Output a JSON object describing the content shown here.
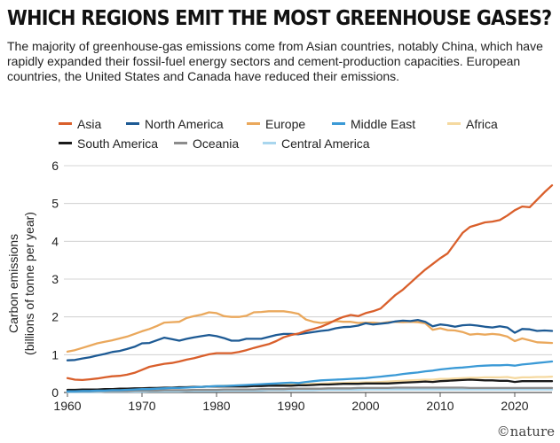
{
  "title": "WHICH REGIONS EMIT THE MOST GREENHOUSE GASES?",
  "subtitle": "The majority of greenhouse-gas emissions come from Asian countries, notably China, which have rapidly expanded their fossil-fuel energy sectors and cement-production capacities. European countries, the United States and Canada have reduced their emissions.",
  "credit": "©nature",
  "chart_data": {
    "type": "line",
    "ylabel_line1": "Carbon emissions",
    "ylabel_line2": "(billions of tonne per year)",
    "xlabel": "",
    "xlim": [
      1960,
      2025
    ],
    "ylim": [
      0,
      6
    ],
    "xticks": [
      1960,
      1970,
      1980,
      1990,
      2000,
      2010,
      2020
    ],
    "yticks": [
      0,
      1,
      2,
      3,
      4,
      5,
      6
    ],
    "grid": "horizontal",
    "legend_position": "top",
    "x": [
      1960,
      1961,
      1962,
      1963,
      1964,
      1965,
      1966,
      1967,
      1968,
      1969,
      1970,
      1971,
      1972,
      1973,
      1974,
      1975,
      1976,
      1977,
      1978,
      1979,
      1980,
      1981,
      1982,
      1983,
      1984,
      1985,
      1986,
      1987,
      1988,
      1989,
      1990,
      1991,
      1992,
      1993,
      1994,
      1995,
      1996,
      1997,
      1998,
      1999,
      2000,
      2001,
      2002,
      2003,
      2004,
      2005,
      2006,
      2007,
      2008,
      2009,
      2010,
      2011,
      2012,
      2013,
      2014,
      2015,
      2016,
      2017,
      2018,
      2019,
      2020,
      2021,
      2022,
      2023,
      2024,
      2025
    ],
    "series": [
      {
        "name": "Asia",
        "color": "#d95f2b",
        "values": [
          0.38,
          0.34,
          0.33,
          0.35,
          0.37,
          0.4,
          0.43,
          0.44,
          0.47,
          0.52,
          0.6,
          0.68,
          0.72,
          0.76,
          0.78,
          0.82,
          0.87,
          0.91,
          0.96,
          1.01,
          1.04,
          1.04,
          1.04,
          1.07,
          1.12,
          1.18,
          1.23,
          1.28,
          1.36,
          1.46,
          1.52,
          1.56,
          1.63,
          1.68,
          1.74,
          1.82,
          1.92,
          2.0,
          2.05,
          2.02,
          2.1,
          2.15,
          2.22,
          2.4,
          2.58,
          2.72,
          2.9,
          3.08,
          3.25,
          3.4,
          3.55,
          3.68,
          3.95,
          4.22,
          4.38,
          4.44,
          4.5,
          4.52,
          4.56,
          4.68,
          4.82,
          4.92,
          4.9,
          5.1,
          5.3,
          5.48
        ]
      },
      {
        "name": "North America",
        "color": "#1d5a94",
        "values": [
          0.85,
          0.86,
          0.9,
          0.93,
          0.98,
          1.02,
          1.07,
          1.1,
          1.15,
          1.21,
          1.3,
          1.31,
          1.38,
          1.45,
          1.41,
          1.37,
          1.42,
          1.46,
          1.49,
          1.52,
          1.49,
          1.44,
          1.37,
          1.37,
          1.42,
          1.42,
          1.42,
          1.47,
          1.52,
          1.55,
          1.55,
          1.54,
          1.57,
          1.6,
          1.63,
          1.65,
          1.7,
          1.73,
          1.74,
          1.77,
          1.83,
          1.8,
          1.82,
          1.84,
          1.88,
          1.9,
          1.89,
          1.92,
          1.87,
          1.75,
          1.8,
          1.78,
          1.74,
          1.78,
          1.79,
          1.77,
          1.74,
          1.72,
          1.75,
          1.72,
          1.58,
          1.68,
          1.67,
          1.63,
          1.64,
          1.63
        ]
      },
      {
        "name": "Europe",
        "color": "#eaa85c",
        "values": [
          1.08,
          1.12,
          1.18,
          1.24,
          1.3,
          1.34,
          1.38,
          1.43,
          1.48,
          1.55,
          1.62,
          1.68,
          1.76,
          1.85,
          1.86,
          1.87,
          1.97,
          2.02,
          2.06,
          2.12,
          2.1,
          2.02,
          2.0,
          2.0,
          2.03,
          2.12,
          2.13,
          2.15,
          2.15,
          2.15,
          2.12,
          2.08,
          1.93,
          1.87,
          1.84,
          1.86,
          1.89,
          1.87,
          1.87,
          1.84,
          1.85,
          1.85,
          1.83,
          1.86,
          1.87,
          1.86,
          1.87,
          1.86,
          1.83,
          1.66,
          1.7,
          1.65,
          1.64,
          1.6,
          1.53,
          1.55,
          1.53,
          1.55,
          1.53,
          1.48,
          1.36,
          1.43,
          1.38,
          1.33,
          1.32,
          1.31
        ]
      },
      {
        "name": "Middle East",
        "color": "#3b9ad6",
        "values": [
          0.03,
          0.03,
          0.04,
          0.04,
          0.05,
          0.05,
          0.06,
          0.06,
          0.07,
          0.08,
          0.09,
          0.09,
          0.1,
          0.11,
          0.12,
          0.12,
          0.13,
          0.14,
          0.15,
          0.16,
          0.17,
          0.17,
          0.18,
          0.19,
          0.2,
          0.21,
          0.22,
          0.23,
          0.24,
          0.25,
          0.26,
          0.25,
          0.28,
          0.3,
          0.32,
          0.33,
          0.34,
          0.35,
          0.36,
          0.37,
          0.38,
          0.4,
          0.42,
          0.44,
          0.46,
          0.49,
          0.51,
          0.53,
          0.56,
          0.58,
          0.61,
          0.63,
          0.65,
          0.66,
          0.68,
          0.7,
          0.71,
          0.72,
          0.72,
          0.73,
          0.71,
          0.74,
          0.76,
          0.78,
          0.8,
          0.82
        ]
      },
      {
        "name": "Africa",
        "color": "#f5d9a0",
        "values": [
          0.07,
          0.07,
          0.07,
          0.08,
          0.08,
          0.08,
          0.09,
          0.09,
          0.1,
          0.1,
          0.11,
          0.11,
          0.12,
          0.12,
          0.13,
          0.13,
          0.14,
          0.15,
          0.15,
          0.16,
          0.17,
          0.18,
          0.18,
          0.19,
          0.19,
          0.2,
          0.2,
          0.21,
          0.21,
          0.22,
          0.22,
          0.22,
          0.22,
          0.23,
          0.23,
          0.24,
          0.25,
          0.25,
          0.26,
          0.26,
          0.27,
          0.27,
          0.28,
          0.29,
          0.3,
          0.31,
          0.32,
          0.33,
          0.34,
          0.34,
          0.36,
          0.36,
          0.37,
          0.38,
          0.39,
          0.39,
          0.4,
          0.4,
          0.4,
          0.41,
          0.38,
          0.4,
          0.4,
          0.41,
          0.41,
          0.42
        ]
      },
      {
        "name": "South America",
        "color": "#1a1a1a",
        "values": [
          0.07,
          0.07,
          0.08,
          0.08,
          0.08,
          0.09,
          0.09,
          0.1,
          0.1,
          0.11,
          0.11,
          0.12,
          0.12,
          0.13,
          0.13,
          0.14,
          0.14,
          0.15,
          0.15,
          0.16,
          0.16,
          0.16,
          0.16,
          0.16,
          0.16,
          0.17,
          0.17,
          0.18,
          0.18,
          0.18,
          0.18,
          0.19,
          0.19,
          0.2,
          0.21,
          0.21,
          0.22,
          0.23,
          0.23,
          0.23,
          0.24,
          0.24,
          0.24,
          0.24,
          0.25,
          0.26,
          0.27,
          0.28,
          0.29,
          0.28,
          0.3,
          0.31,
          0.32,
          0.33,
          0.34,
          0.33,
          0.32,
          0.32,
          0.31,
          0.31,
          0.28,
          0.3,
          0.3,
          0.3,
          0.3,
          0.3
        ]
      },
      {
        "name": "Oceania",
        "color": "#8c8c8c",
        "values": [
          0.03,
          0.03,
          0.03,
          0.03,
          0.04,
          0.04,
          0.04,
          0.04,
          0.04,
          0.05,
          0.05,
          0.05,
          0.05,
          0.06,
          0.06,
          0.06,
          0.06,
          0.07,
          0.07,
          0.07,
          0.07,
          0.08,
          0.08,
          0.08,
          0.08,
          0.08,
          0.09,
          0.09,
          0.09,
          0.09,
          0.1,
          0.1,
          0.1,
          0.1,
          0.1,
          0.11,
          0.11,
          0.11,
          0.11,
          0.12,
          0.12,
          0.12,
          0.12,
          0.12,
          0.13,
          0.13,
          0.13,
          0.13,
          0.13,
          0.13,
          0.13,
          0.13,
          0.13,
          0.13,
          0.12,
          0.12,
          0.12,
          0.12,
          0.12,
          0.12,
          0.12,
          0.12,
          0.12,
          0.12,
          0.12,
          0.12
        ]
      },
      {
        "name": "Central America",
        "color": "#a9d6ee",
        "values": [
          0.01,
          0.01,
          0.01,
          0.01,
          0.01,
          0.02,
          0.02,
          0.02,
          0.02,
          0.02,
          0.02,
          0.03,
          0.03,
          0.03,
          0.03,
          0.03,
          0.04,
          0.04,
          0.04,
          0.04,
          0.04,
          0.05,
          0.05,
          0.05,
          0.05,
          0.05,
          0.05,
          0.06,
          0.06,
          0.06,
          0.06,
          0.06,
          0.06,
          0.06,
          0.07,
          0.07,
          0.07,
          0.07,
          0.07,
          0.07,
          0.08,
          0.08,
          0.08,
          0.08,
          0.08,
          0.08,
          0.08,
          0.08,
          0.08,
          0.08,
          0.08,
          0.08,
          0.08,
          0.08,
          0.08,
          0.08,
          0.08,
          0.08,
          0.08,
          0.08,
          0.08,
          0.08,
          0.08,
          0.08,
          0.08,
          0.08
        ]
      }
    ]
  }
}
